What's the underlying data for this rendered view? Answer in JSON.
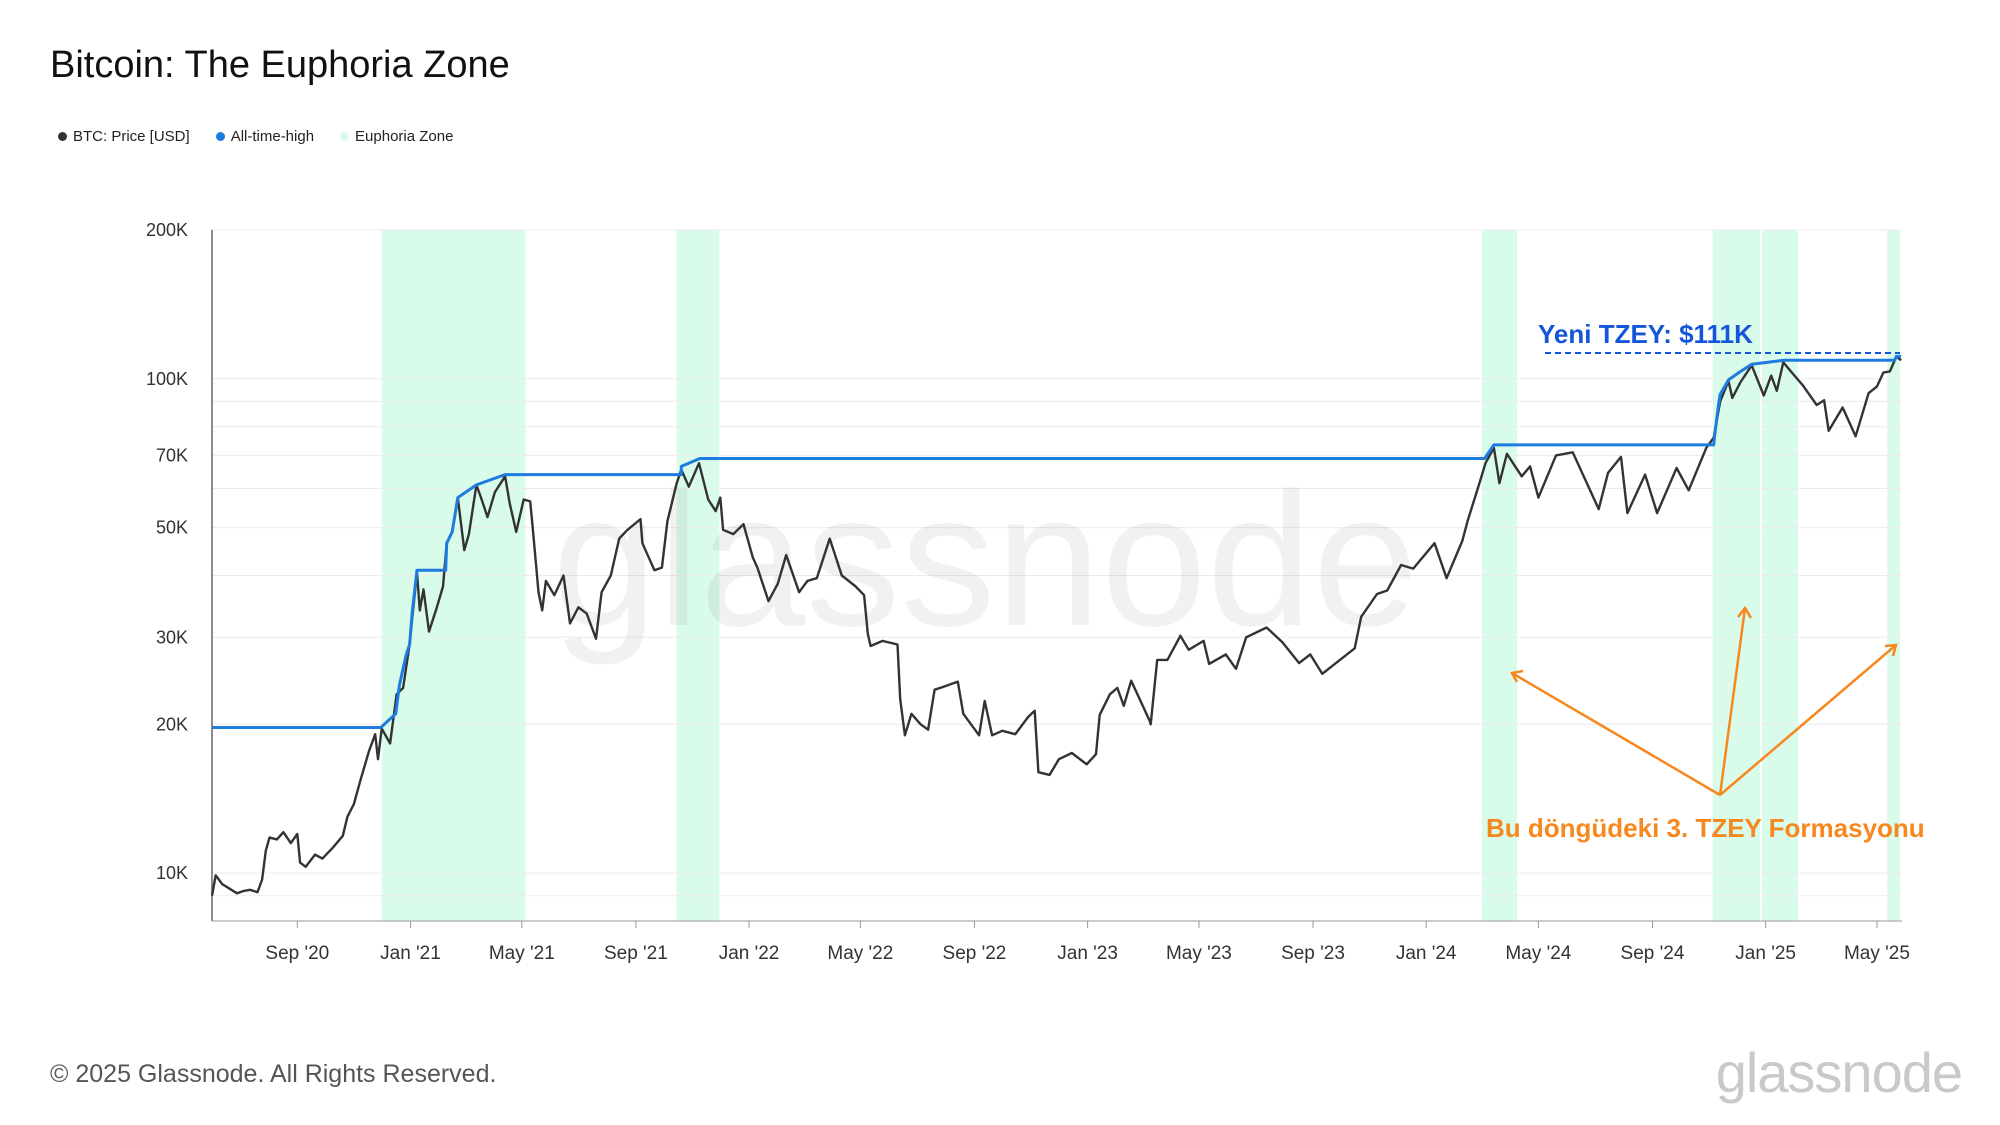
{
  "title": "Bitcoin: The Euphoria Zone",
  "legend": [
    {
      "label": "BTC: Price [USD]",
      "color": "#333333"
    },
    {
      "label": "All-time-high",
      "color": "#1e7be0"
    },
    {
      "label": "Euphoria Zone",
      "color": "#d9fbea"
    }
  ],
  "watermark": "glassnode",
  "footer": "© 2025 Glassnode. All Rights Reserved.",
  "brand": "glassnode",
  "colors": {
    "price": "#333333",
    "ath": "#1e7be0",
    "euphoria": "#d9fbea",
    "annotation_ath": "#1456d9",
    "annotation_pattern": "#f7881f"
  },
  "annotations": {
    "ath_label": "Yeni TZEY: $111K",
    "pattern_label": "Bu döngüdeki 3. TZEY Formasyonu"
  },
  "chart_data": {
    "type": "line",
    "scale": "log",
    "x_range": [
      "2020-06-01",
      "2025-05-28"
    ],
    "y_range": [
      8000,
      200000
    ],
    "y_ticks": [
      {
        "value": 10000,
        "label": "10K"
      },
      {
        "value": 20000,
        "label": "20K"
      },
      {
        "value": 30000,
        "label": "30K"
      },
      {
        "value": 50000,
        "label": "50K"
      },
      {
        "value": 70000,
        "label": "70K"
      },
      {
        "value": 100000,
        "label": "100K"
      },
      {
        "value": 200000,
        "label": "200K"
      }
    ],
    "x_ticks": [
      {
        "date": "2020-09-01",
        "label": "Sep '20"
      },
      {
        "date": "2021-01-01",
        "label": "Jan '21"
      },
      {
        "date": "2021-05-01",
        "label": "May '21"
      },
      {
        "date": "2021-09-01",
        "label": "Sep '21"
      },
      {
        "date": "2022-01-01",
        "label": "Jan '22"
      },
      {
        "date": "2022-05-01",
        "label": "May '22"
      },
      {
        "date": "2022-09-01",
        "label": "Sep '22"
      },
      {
        "date": "2023-01-01",
        "label": "Jan '23"
      },
      {
        "date": "2023-05-01",
        "label": "May '23"
      },
      {
        "date": "2023-09-01",
        "label": "Sep '23"
      },
      {
        "date": "2024-01-01",
        "label": "Jan '24"
      },
      {
        "date": "2024-05-01",
        "label": "May '24"
      },
      {
        "date": "2024-09-01",
        "label": "Sep '24"
      },
      {
        "date": "2025-01-01",
        "label": "Jan '25"
      },
      {
        "date": "2025-05-01",
        "label": "May '25"
      }
    ],
    "euphoria_zones": [
      [
        "2020-12-01",
        "2021-05-05"
      ],
      [
        "2021-10-15",
        "2021-11-30"
      ],
      [
        "2024-03-01",
        "2024-04-08"
      ],
      [
        "2024-11-05",
        "2024-12-26"
      ],
      [
        "2024-12-28",
        "2025-02-05"
      ],
      [
        "2025-05-12",
        "2025-05-26"
      ]
    ],
    "series": [
      {
        "name": "BTC: Price [USD]",
        "points": [
          [
            "2020-06-01",
            9000
          ],
          [
            "2020-06-05",
            9900
          ],
          [
            "2020-06-12",
            9500
          ],
          [
            "2020-06-20",
            9300
          ],
          [
            "2020-06-28",
            9100
          ],
          [
            "2020-07-05",
            9200
          ],
          [
            "2020-07-12",
            9250
          ],
          [
            "2020-07-20",
            9150
          ],
          [
            "2020-07-25",
            9700
          ],
          [
            "2020-07-29",
            11100
          ],
          [
            "2020-08-02",
            11800
          ],
          [
            "2020-08-10",
            11700
          ],
          [
            "2020-08-17",
            12100
          ],
          [
            "2020-08-25",
            11500
          ],
          [
            "2020-09-01",
            12000
          ],
          [
            "2020-09-04",
            10500
          ],
          [
            "2020-09-10",
            10300
          ],
          [
            "2020-09-20",
            10900
          ],
          [
            "2020-09-28",
            10700
          ],
          [
            "2020-10-10",
            11300
          ],
          [
            "2020-10-20",
            11900
          ],
          [
            "2020-10-25",
            13000
          ],
          [
            "2020-11-01",
            13800
          ],
          [
            "2020-11-08",
            15400
          ],
          [
            "2020-11-17",
            17600
          ],
          [
            "2020-11-24",
            19100
          ],
          [
            "2020-11-27",
            17000
          ],
          [
            "2020-12-01",
            19600
          ],
          [
            "2020-12-10",
            18300
          ],
          [
            "2020-12-17",
            23000
          ],
          [
            "2020-12-24",
            23700
          ],
          [
            "2020-12-31",
            29000
          ],
          [
            "2021-01-03",
            33000
          ],
          [
            "2021-01-08",
            40500
          ],
          [
            "2021-01-11",
            34000
          ],
          [
            "2021-01-15",
            37500
          ],
          [
            "2021-01-21",
            30800
          ],
          [
            "2021-01-29",
            34300
          ],
          [
            "2021-02-05",
            38000
          ],
          [
            "2021-02-09",
            46500
          ],
          [
            "2021-02-15",
            49000
          ],
          [
            "2021-02-21",
            57500
          ],
          [
            "2021-02-28",
            45000
          ],
          [
            "2021-03-05",
            48500
          ],
          [
            "2021-03-13",
            61000
          ],
          [
            "2021-03-18",
            57500
          ],
          [
            "2021-03-25",
            52500
          ],
          [
            "2021-04-02",
            59000
          ],
          [
            "2021-04-13",
            63500
          ],
          [
            "2021-04-18",
            56000
          ],
          [
            "2021-04-25",
            49000
          ],
          [
            "2021-05-03",
            57000
          ],
          [
            "2021-05-10",
            56500
          ],
          [
            "2021-05-13",
            49500
          ],
          [
            "2021-05-19",
            37000
          ],
          [
            "2021-05-23",
            34000
          ],
          [
            "2021-05-27",
            39000
          ],
          [
            "2021-06-05",
            36500
          ],
          [
            "2021-06-15",
            40000
          ],
          [
            "2021-06-22",
            32000
          ],
          [
            "2021-07-01",
            34500
          ],
          [
            "2021-07-10",
            33500
          ],
          [
            "2021-07-20",
            29800
          ],
          [
            "2021-07-26",
            37000
          ],
          [
            "2021-08-05",
            40000
          ],
          [
            "2021-08-14",
            47500
          ],
          [
            "2021-08-23",
            49500
          ],
          [
            "2021-09-06",
            52000
          ],
          [
            "2021-09-08",
            46500
          ],
          [
            "2021-09-21",
            41000
          ],
          [
            "2021-09-29",
            41500
          ],
          [
            "2021-10-05",
            51500
          ],
          [
            "2021-10-15",
            61500
          ],
          [
            "2021-10-20",
            65500
          ],
          [
            "2021-10-28",
            60500
          ],
          [
            "2021-11-08",
            67500
          ],
          [
            "2021-11-18",
            57000
          ],
          [
            "2021-11-26",
            54000
          ],
          [
            "2021-12-01",
            57500
          ],
          [
            "2021-12-04",
            49500
          ],
          [
            "2021-12-15",
            48500
          ],
          [
            "2021-12-26",
            50800
          ],
          [
            "2022-01-05",
            43500
          ],
          [
            "2022-01-10",
            41500
          ],
          [
            "2022-01-22",
            35500
          ],
          [
            "2022-02-01",
            38500
          ],
          [
            "2022-02-10",
            44000
          ],
          [
            "2022-02-24",
            37000
          ],
          [
            "2022-03-05",
            39000
          ],
          [
            "2022-03-15",
            39500
          ],
          [
            "2022-03-29",
            47500
          ],
          [
            "2022-04-11",
            40000
          ],
          [
            "2022-04-26",
            38000
          ],
          [
            "2022-05-05",
            36500
          ],
          [
            "2022-05-09",
            30500
          ],
          [
            "2022-05-12",
            28800
          ],
          [
            "2022-05-25",
            29500
          ],
          [
            "2022-06-10",
            29000
          ],
          [
            "2022-06-13",
            22500
          ],
          [
            "2022-06-18",
            19000
          ],
          [
            "2022-06-25",
            21000
          ],
          [
            "2022-07-05",
            20000
          ],
          [
            "2022-07-13",
            19500
          ],
          [
            "2022-07-20",
            23500
          ],
          [
            "2022-07-29",
            23800
          ],
          [
            "2022-08-14",
            24400
          ],
          [
            "2022-08-20",
            21000
          ],
          [
            "2022-09-06",
            19000
          ],
          [
            "2022-09-12",
            22300
          ],
          [
            "2022-09-20",
            19000
          ],
          [
            "2022-10-01",
            19400
          ],
          [
            "2022-10-15",
            19100
          ],
          [
            "2022-10-29",
            20700
          ],
          [
            "2022-11-05",
            21300
          ],
          [
            "2022-11-09",
            16000
          ],
          [
            "2022-11-21",
            15800
          ],
          [
            "2022-12-01",
            17000
          ],
          [
            "2022-12-15",
            17500
          ],
          [
            "2022-12-31",
            16600
          ],
          [
            "2023-01-10",
            17400
          ],
          [
            "2023-01-14",
            20900
          ],
          [
            "2023-01-25",
            23000
          ],
          [
            "2023-02-02",
            23700
          ],
          [
            "2023-02-09",
            21800
          ],
          [
            "2023-02-17",
            24500
          ],
          [
            "2023-03-09",
            20300
          ],
          [
            "2023-03-10",
            20000
          ],
          [
            "2023-03-17",
            27000
          ],
          [
            "2023-03-28",
            27000
          ],
          [
            "2023-04-11",
            30200
          ],
          [
            "2023-04-20",
            28300
          ],
          [
            "2023-05-06",
            29500
          ],
          [
            "2023-05-12",
            26500
          ],
          [
            "2023-05-30",
            27700
          ],
          [
            "2023-06-10",
            25900
          ],
          [
            "2023-06-21",
            30000
          ],
          [
            "2023-07-13",
            31400
          ],
          [
            "2023-07-30",
            29300
          ],
          [
            "2023-08-17",
            26600
          ],
          [
            "2023-08-29",
            27700
          ],
          [
            "2023-09-11",
            25300
          ],
          [
            "2023-09-30",
            27000
          ],
          [
            "2023-10-16",
            28500
          ],
          [
            "2023-10-23",
            33000
          ],
          [
            "2023-11-09",
            36700
          ],
          [
            "2023-11-20",
            37300
          ],
          [
            "2023-12-05",
            42000
          ],
          [
            "2023-12-18",
            41300
          ],
          [
            "2024-01-10",
            46500
          ],
          [
            "2024-01-23",
            39500
          ],
          [
            "2024-02-09",
            47000
          ],
          [
            "2024-02-15",
            51800
          ],
          [
            "2024-02-28",
            62000
          ],
          [
            "2024-03-05",
            67500
          ],
          [
            "2024-03-14",
            72500
          ],
          [
            "2024-03-20",
            61500
          ],
          [
            "2024-03-28",
            70500
          ],
          [
            "2024-04-13",
            63500
          ],
          [
            "2024-04-22",
            66500
          ],
          [
            "2024-05-01",
            57500
          ],
          [
            "2024-05-20",
            70000
          ],
          [
            "2024-06-07",
            71000
          ],
          [
            "2024-06-24",
            60500
          ],
          [
            "2024-07-05",
            54500
          ],
          [
            "2024-07-15",
            64500
          ],
          [
            "2024-07-29",
            69500
          ],
          [
            "2024-08-05",
            53500
          ],
          [
            "2024-08-24",
            64000
          ],
          [
            "2024-09-06",
            53500
          ],
          [
            "2024-09-27",
            66000
          ],
          [
            "2024-10-10",
            59500
          ],
          [
            "2024-10-29",
            72500
          ],
          [
            "2024-11-06",
            76000
          ],
          [
            "2024-11-13",
            90000
          ],
          [
            "2024-11-22",
            99000
          ],
          [
            "2024-11-26",
            91500
          ],
          [
            "2024-12-05",
            98500
          ],
          [
            "2024-12-17",
            106500
          ],
          [
            "2024-12-30",
            92500
          ],
          [
            "2025-01-07",
            101500
          ],
          [
            "2025-01-13",
            94500
          ],
          [
            "2025-01-20",
            108000
          ],
          [
            "2025-01-31",
            102000
          ],
          [
            "2025-02-10",
            97000
          ],
          [
            "2025-02-25",
            88500
          ],
          [
            "2025-03-05",
            90500
          ],
          [
            "2025-03-10",
            78500
          ],
          [
            "2025-03-25",
            87500
          ],
          [
            "2025-04-08",
            76500
          ],
          [
            "2025-04-22",
            93500
          ],
          [
            "2025-05-01",
            96500
          ],
          [
            "2025-05-08",
            103000
          ],
          [
            "2025-05-15",
            103500
          ],
          [
            "2025-05-22",
            111000
          ],
          [
            "2025-05-27",
            109000
          ]
        ]
      },
      {
        "name": "All-time-high",
        "points": [
          [
            "2020-06-01",
            19700
          ],
          [
            "2020-11-30",
            19700
          ],
          [
            "2020-12-16",
            21000
          ],
          [
            "2020-12-20",
            24000
          ],
          [
            "2020-12-27",
            27500
          ],
          [
            "2020-12-31",
            29000
          ],
          [
            "2021-01-03",
            34000
          ],
          [
            "2021-01-08",
            41000
          ],
          [
            "2021-02-08",
            41000
          ],
          [
            "2021-02-09",
            46500
          ],
          [
            "2021-02-15",
            49000
          ],
          [
            "2021-02-21",
            57500
          ],
          [
            "2021-03-13",
            61000
          ],
          [
            "2021-04-13",
            64000
          ],
          [
            "2021-10-20",
            64000
          ],
          [
            "2021-10-20",
            66500
          ],
          [
            "2021-11-09",
            69000
          ],
          [
            "2024-03-04",
            69000
          ],
          [
            "2024-03-14",
            73500
          ],
          [
            "2024-11-06",
            73500
          ],
          [
            "2024-11-07",
            76500
          ],
          [
            "2024-11-11",
            88000
          ],
          [
            "2024-11-13",
            93000
          ],
          [
            "2024-11-22",
            99500
          ],
          [
            "2024-12-05",
            103500
          ],
          [
            "2024-12-17",
            107000
          ],
          [
            "2025-01-20",
            109000
          ],
          [
            "2025-05-20",
            109000
          ],
          [
            "2025-05-22",
            111000
          ],
          [
            "2025-05-27",
            111000
          ]
        ]
      }
    ]
  }
}
